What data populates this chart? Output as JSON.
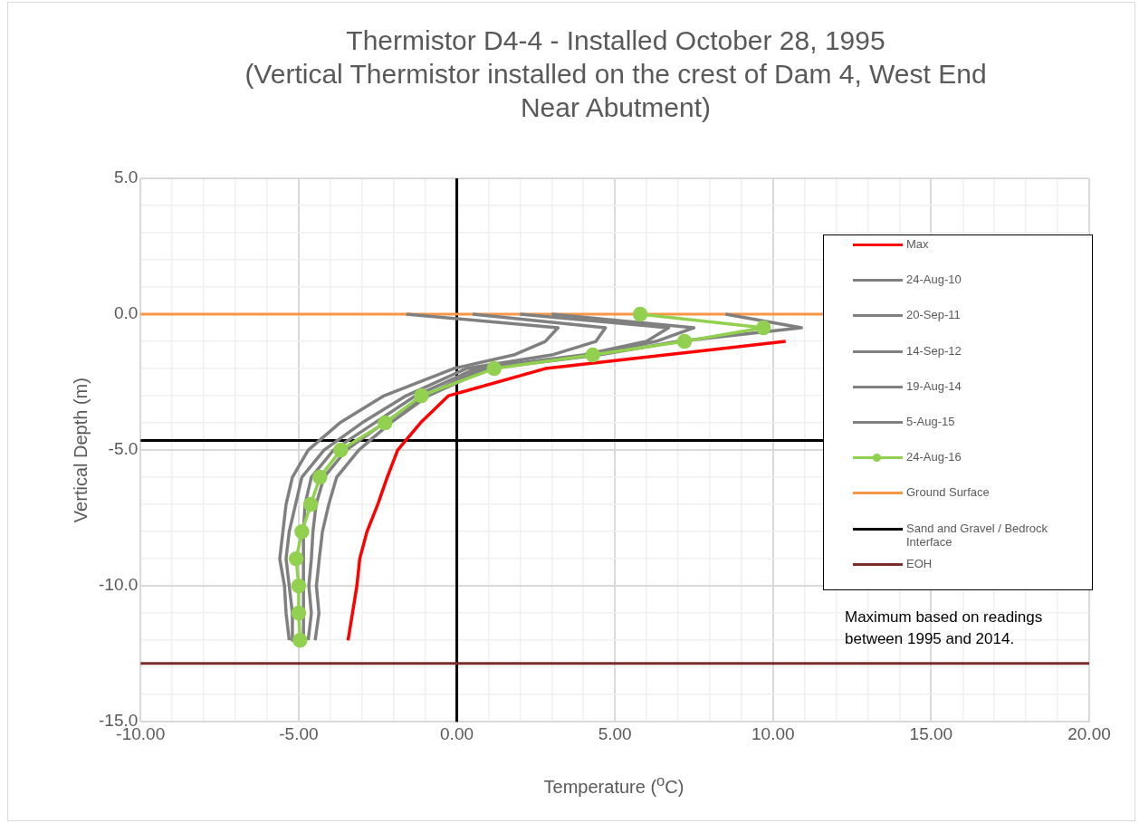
{
  "chart_data": {
    "type": "line",
    "title": "Thermistor D4-4 - Installed October 28, 1995",
    "subtitle": "(Vertical Thermistor installed on the crest of Dam 4, West End Near Abutment)",
    "xlabel": "Temperature ($^{o}$C)",
    "ylabel": "Vertical Depth (m)",
    "annotations": [
      "Maximum based on readings between  1995 and 2014."
    ],
    "xlim": [
      -10,
      20
    ],
    "xticks": [
      {
        "value": -10,
        "label": "-10.00"
      },
      {
        "value": -9,
        "label": null
      },
      {
        "value": -8,
        "label": null
      },
      {
        "value": -7,
        "label": null
      },
      {
        "value": -6,
        "label": null
      },
      {
        "value": -5,
        "label": "-5.00"
      },
      {
        "value": -4,
        "label": null
      },
      {
        "value": -3,
        "label": null
      },
      {
        "value": -2,
        "label": null
      },
      {
        "value": -1,
        "label": null
      },
      {
        "value": 0,
        "label": "0.00"
      },
      {
        "value": 1,
        "label": null
      },
      {
        "value": 2,
        "label": null
      },
      {
        "value": 3,
        "label": null
      },
      {
        "value": 4,
        "label": null
      },
      {
        "value": 5,
        "label": "5.00"
      },
      {
        "value": 6,
        "label": null
      },
      {
        "value": 7,
        "label": null
      },
      {
        "value": 8,
        "label": null
      },
      {
        "value": 9,
        "label": null
      },
      {
        "value": 10,
        "label": "10.00"
      },
      {
        "value": 11,
        "label": null
      },
      {
        "value": 12,
        "label": null
      },
      {
        "value": 13,
        "label": null
      },
      {
        "value": 14,
        "label": null
      },
      {
        "value": 15,
        "label": "15.00"
      },
      {
        "value": 16,
        "label": null
      },
      {
        "value": 17,
        "label": null
      },
      {
        "value": 18,
        "label": null
      },
      {
        "value": 19,
        "label": null
      },
      {
        "value": 20,
        "label": "20.00"
      }
    ],
    "ylim": [
      -15,
      5
    ],
    "yticks": [
      {
        "value": -15,
        "label": "-15.0"
      },
      {
        "value": -14,
        "label": null
      },
      {
        "value": -13,
        "label": null
      },
      {
        "value": -12,
        "label": null
      },
      {
        "value": -11,
        "label": null
      },
      {
        "value": -10,
        "label": "-10.0"
      },
      {
        "value": -9,
        "label": null
      },
      {
        "value": -8,
        "label": null
      },
      {
        "value": -7,
        "label": null
      },
      {
        "value": -6,
        "label": null
      },
      {
        "value": -5,
        "label": "-5.0"
      },
      {
        "value": -4,
        "label": null
      },
      {
        "value": -3,
        "label": null
      },
      {
        "value": -2,
        "label": null
      },
      {
        "value": -1,
        "label": null
      },
      {
        "value": 0,
        "label": "0.0"
      },
      {
        "value": 1,
        "label": null
      },
      {
        "value": 2,
        "label": null
      },
      {
        "value": 3,
        "label": null
      },
      {
        "value": 4,
        "label": null
      },
      {
        "value": 5,
        "label": "5.0"
      }
    ],
    "grid": true,
    "legend": "right",
    "marker": "none",
    "line_style": "solid",
    "series": [
      {
        "name": "Max",
        "color": "#ff0000",
        "x": [
          10.4,
          6.6,
          2.8,
          -0.26,
          -1.15,
          -1.87,
          -2.2,
          -2.5,
          -2.84,
          -3.07,
          -3.16,
          -3.3,
          -3.44
        ],
        "values": [
          -1,
          -1.5,
          -2,
          -3,
          -4,
          -5,
          -6,
          -7,
          -8,
          -9,
          -10,
          -11,
          -12
        ]
      },
      {
        "name": "24-Aug-10",
        "color": "#808080",
        "x": [
          -1.6,
          3.2,
          2.8,
          1.8,
          -0.1,
          -2.3,
          -3.7,
          -4.7,
          -5.2,
          -5.4,
          -5.5,
          -5.6,
          -5.45,
          -5.4,
          -5.3
        ],
        "values": [
          0,
          -0.5,
          -1,
          -1.5,
          -2,
          -3,
          -4,
          -5,
          -6,
          -7,
          -8,
          -9,
          -10,
          -11,
          -12
        ]
      },
      {
        "name": "20-Sep-11",
        "color": "#808080",
        "x": [
          0.5,
          4.7,
          4.4,
          3.0,
          0.3,
          -1.6,
          -3.0,
          -4.2,
          -4.9,
          -5.1,
          -5.3,
          -5.4,
          -5.3,
          -5.2,
          -5.2
        ],
        "values": [
          0,
          -0.5,
          -1,
          -1.5,
          -2,
          -3,
          -4,
          -5,
          -6,
          -7,
          -8,
          -9,
          -10,
          -11,
          -12
        ]
      },
      {
        "name": "14-Sep-12",
        "color": "#808080",
        "x": [
          2.0,
          6.7,
          6.0,
          4.0,
          0.6,
          -1.3,
          -2.6,
          -3.9,
          -4.6,
          -4.8,
          -4.85,
          -4.85,
          -4.85,
          -4.85,
          -4.85
        ],
        "values": [
          0,
          -0.5,
          -1,
          -1.5,
          -2,
          -3,
          -4,
          -5,
          -6,
          -7,
          -8,
          -9,
          -10,
          -11,
          -12
        ]
      },
      {
        "name": "19-Aug-14",
        "color": "#808080",
        "x": [
          3.0,
          7.5,
          6.3,
          4.2,
          0.8,
          -1.0,
          -2.3,
          -3.5,
          -4.2,
          -4.45,
          -4.55,
          -4.6,
          -4.68,
          -4.6,
          -4.7
        ],
        "values": [
          0,
          -0.5,
          -1,
          -1.5,
          -2,
          -3,
          -4,
          -5,
          -6,
          -7,
          -8,
          -9,
          -10,
          -11,
          -12
        ]
      },
      {
        "name": "5-Aug-15",
        "color": "#808080",
        "x": [
          8.5,
          10.9,
          7.0,
          4.5,
          1.0,
          -0.9,
          -2.1,
          -3.1,
          -3.8,
          -4.05,
          -4.25,
          -4.35,
          -4.44,
          -4.36,
          -4.48
        ],
        "values": [
          0,
          -0.5,
          -1,
          -1.5,
          -2,
          -3,
          -4,
          -5,
          -6,
          -7,
          -8,
          -9,
          -10,
          -11,
          -12
        ]
      },
      {
        "name": "24-Aug-16",
        "color": "#92d050",
        "marker": "circle",
        "x": [
          5.8,
          9.7,
          7.2,
          4.3,
          1.18,
          -1.12,
          -2.27,
          -3.67,
          -4.33,
          -4.62,
          -4.9,
          -5.08,
          -5.0,
          -5.0,
          -4.96
        ],
        "values": [
          0,
          -0.5,
          -1,
          -1.5,
          -2,
          -3,
          -4,
          -5,
          -6,
          -7,
          -8,
          -9,
          -10,
          -11,
          -12
        ]
      }
    ],
    "ref_lines": [
      {
        "axis": "x",
        "value": 0,
        "color": "#000000"
      },
      {
        "axis": "y",
        "value": 0,
        "label": "Ground Surface",
        "color": "#f79646"
      },
      {
        "axis": "y",
        "value": -4.65,
        "label": "Sand and Gravel / Bedrock Interface",
        "color": "#000000"
      },
      {
        "axis": "y",
        "value": -12.85,
        "label": "EOH",
        "color": "#7b2c2c"
      }
    ]
  }
}
